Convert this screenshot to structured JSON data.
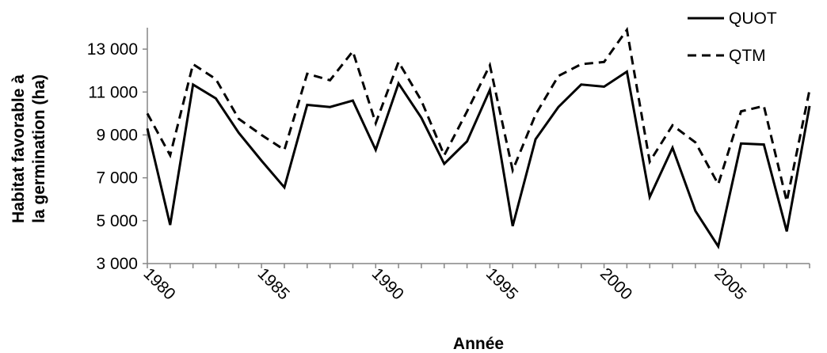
{
  "chart_data": {
    "type": "line",
    "xlabel": "Année",
    "ylabel_lines": [
      "Habitat favorable à",
      "la germination (ha)"
    ],
    "x": [
      1980,
      1981,
      1982,
      1983,
      1984,
      1985,
      1986,
      1987,
      1988,
      1989,
      1990,
      1991,
      1992,
      1993,
      1994,
      1995,
      1996,
      1997,
      1998,
      1999,
      2000,
      2001,
      2002,
      2003,
      2004,
      2005,
      2006,
      2007,
      2008,
      2009
    ],
    "xticks": [
      1980,
      1985,
      1990,
      1995,
      2000,
      2005
    ],
    "ylim": [
      3000,
      14000
    ],
    "yticks": [
      3000,
      5000,
      7000,
      9000,
      11000,
      13000
    ],
    "ytick_labels": [
      "3 000",
      "5 000",
      "7 000",
      "9 000",
      "11 000",
      "13 000"
    ],
    "grid": false,
    "legend_position": "top-right",
    "series": [
      {
        "name": "QUOT",
        "style": "solid",
        "values": [
          9300,
          4800,
          11350,
          10700,
          9100,
          7800,
          6550,
          10400,
          10300,
          10600,
          8300,
          11400,
          9800,
          7650,
          8700,
          11100,
          4750,
          8800,
          10300,
          11350,
          11250,
          11950,
          6100,
          8400,
          5450,
          3800,
          8600,
          8550,
          4500,
          10350
        ]
      },
      {
        "name": "QTM",
        "style": "dashed",
        "values": [
          10000,
          8050,
          12300,
          11600,
          9750,
          9000,
          8300,
          11850,
          11550,
          12900,
          9550,
          12400,
          10600,
          8050,
          10100,
          12250,
          7350,
          9950,
          11750,
          12300,
          12400,
          13900,
          7750,
          9450,
          8650,
          6700,
          10100,
          10350,
          5900,
          11100
        ]
      }
    ]
  }
}
